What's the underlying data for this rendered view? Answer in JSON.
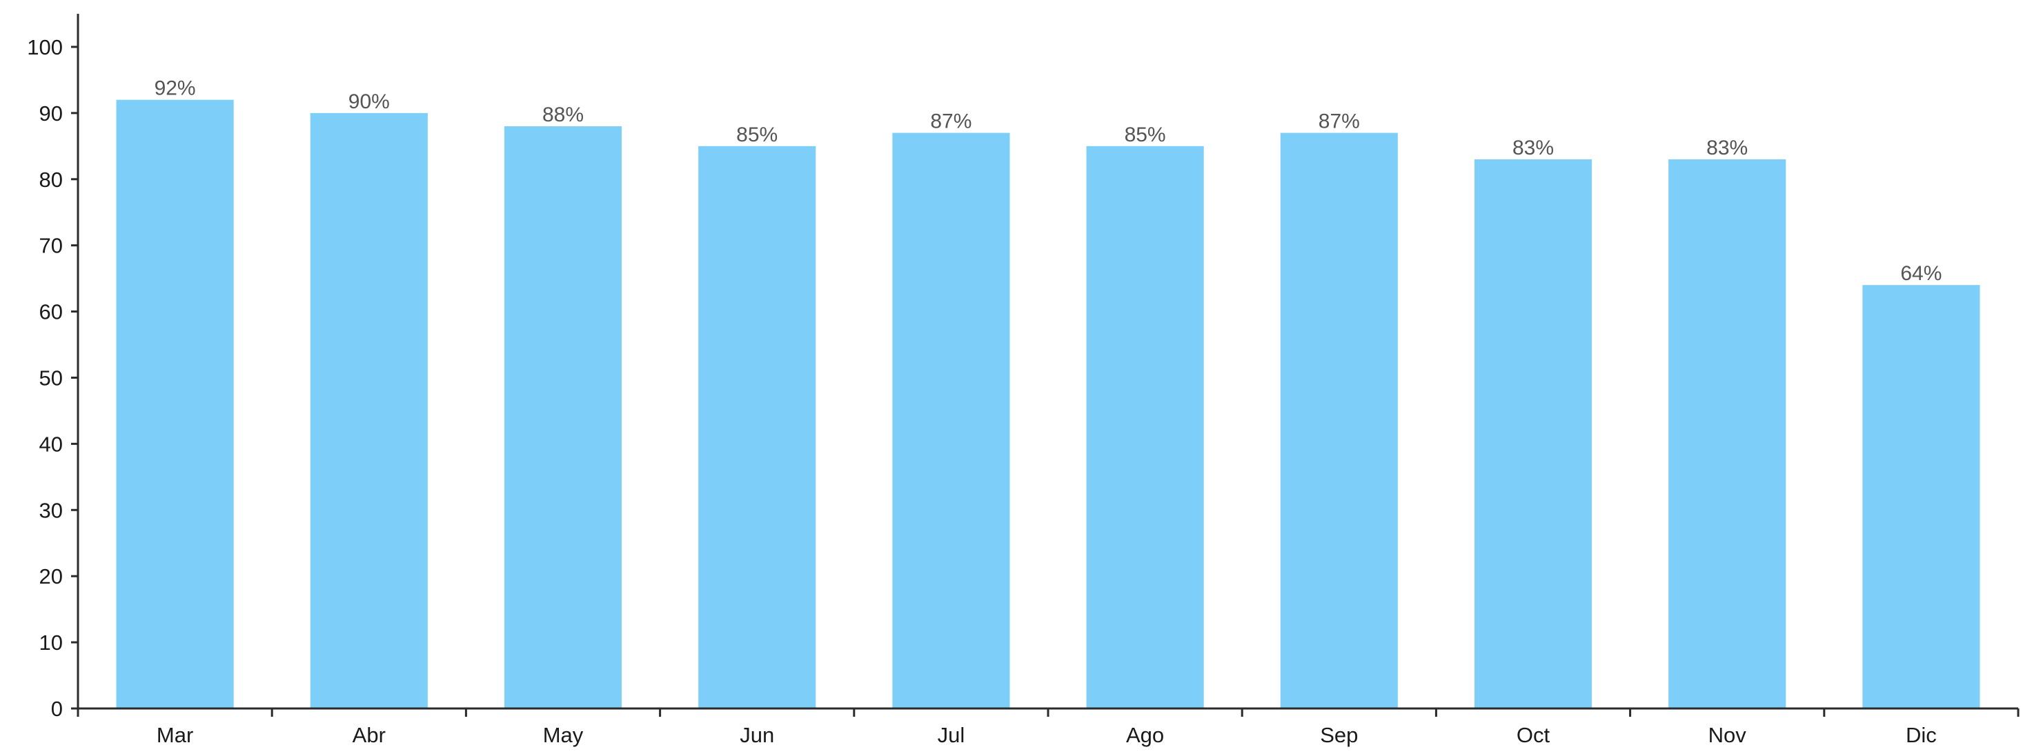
{
  "chart_data": {
    "type": "bar",
    "title": "",
    "xlabel": "",
    "ylabel": "",
    "categories": [
      "Mar",
      "Abr",
      "May",
      "Jun",
      "Jul",
      "Ago",
      "Sep",
      "Oct",
      "Nov",
      "Dic"
    ],
    "values": [
      92,
      90,
      88,
      85,
      87,
      85,
      87,
      83,
      83,
      64
    ],
    "data_labels": [
      "92%",
      "90%",
      "88%",
      "85%",
      "87%",
      "85%",
      "87%",
      "83%",
      "83%",
      "64%"
    ],
    "ylim": [
      0,
      105
    ],
    "yticks": [
      0,
      10,
      20,
      30,
      40,
      50,
      60,
      70,
      80,
      90,
      100
    ],
    "grid": false,
    "legend": "none",
    "colors": {
      "bar": "#7dcff9",
      "axis": "#2b2b2b",
      "tick_text": "#1a1a1a",
      "data_label_text": "#555555"
    }
  }
}
